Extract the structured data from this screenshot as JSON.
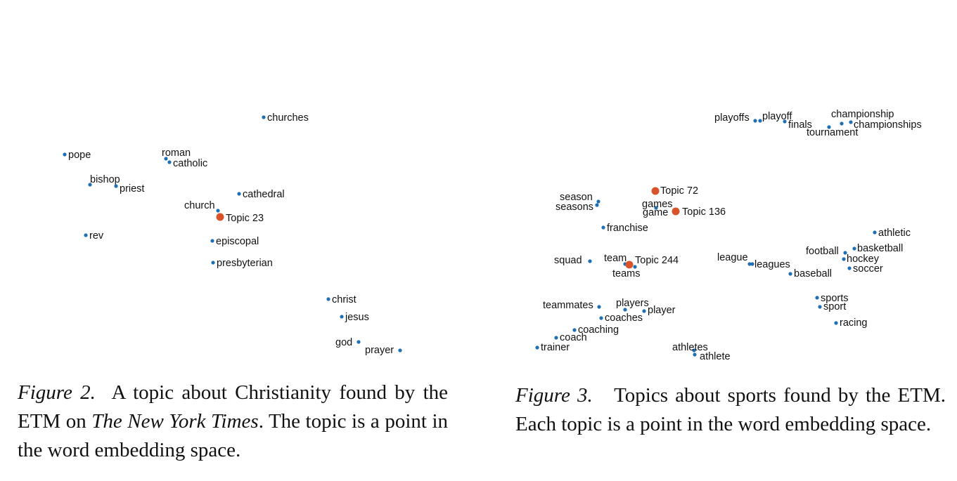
{
  "figure2": {
    "caption": {
      "label": "Figure 2.",
      "text_before": "A topic about Christianity found by the ETM on",
      "italic_source": "The New York Times",
      "text_after": ". The topic is a point in the word embedding space."
    },
    "words": [
      "churches",
      "pope",
      "roman",
      "catholic",
      "bishop",
      "priest",
      "cathedral",
      "church",
      "rev",
      "episcopal",
      "presbyterian",
      "christ",
      "jesus",
      "god",
      "prayer"
    ],
    "topics": [
      "Topic 23"
    ],
    "colors": {
      "word_point": "#1f6fb4",
      "topic_point": "#d9532a"
    }
  },
  "figure3": {
    "caption": {
      "label": "Figure 3.",
      "text": "Topics about sports found by the ETM. Each topic is a point in the word embedding space."
    },
    "words": [
      "playoffs",
      "playoff",
      "finals",
      "championship",
      "championships",
      "tournament",
      "season",
      "seasons",
      "games",
      "game",
      "franchise",
      "athletic",
      "football",
      "basketball",
      "hockey",
      "soccer",
      "league",
      "leagues",
      "baseball",
      "squad",
      "team",
      "teams",
      "teammates",
      "players",
      "player",
      "coaches",
      "coaching",
      "coach",
      "trainer",
      "sports",
      "sport",
      "racing",
      "athletes",
      "athlete"
    ],
    "topics": [
      "Topic 72",
      "Topic 136",
      "Topic 244"
    ],
    "colors": {
      "word_point": "#1f6fb4",
      "topic_point": "#d9532a"
    }
  }
}
